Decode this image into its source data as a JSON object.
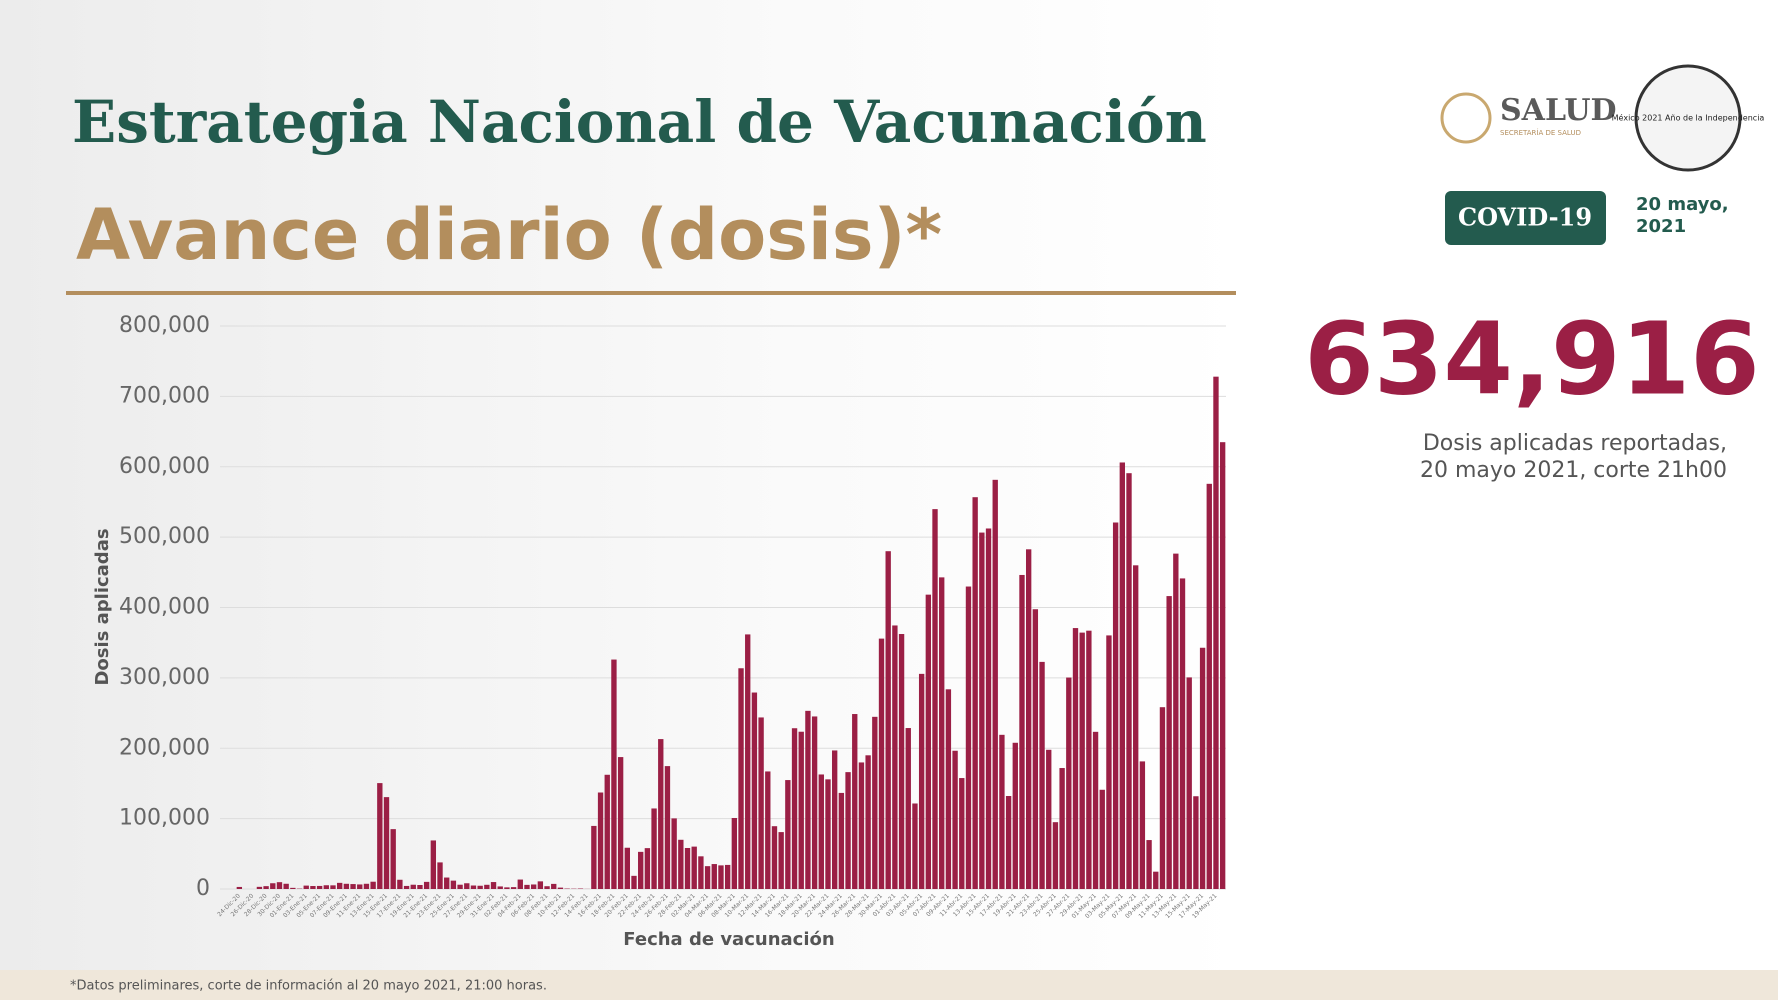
{
  "header": {
    "title": "Estrategia Nacional de Vacunación",
    "subtitle": "Avance diario (dosis)*",
    "logo_text": "SALUD",
    "logo_subtext": "SECRETARÍA DE SALUD",
    "badge": "COVID-19",
    "date": "20 mayo, 2021",
    "emblem_text": "México 2021 Año de la Independencia"
  },
  "summary": {
    "value": {
      "value": 634916,
      "label": "634,916"
    },
    "caption": [
      "Dosis aplicadas reportadas,",
      "20 mayo 2021, corte 21h00"
    ]
  },
  "footnote": "*Datos preliminares, corte de información al 20 mayo  2021, 21:00 horas.",
  "chart_data": {
    "type": "bar",
    "x_label": "Fecha de vacunación",
    "y_label": "Dosis aplicadas",
    "color": "#9b1f45",
    "grid": true,
    "ylim": [
      0,
      800000
    ],
    "yticks": [
      0,
      {
        "value": 100000,
        "label": "100,000"
      },
      {
        "value": 200000,
        "label": "200,000"
      },
      {
        "value": 300000,
        "label": "300,000"
      },
      {
        "value": 400000,
        "label": "400,000"
      },
      {
        "value": 500000,
        "label": "500,000"
      },
      {
        "value": 600000,
        "label": "600,000"
      },
      {
        "value": 700000,
        "label": "700,000"
      },
      {
        "value": 800000,
        "label": "800,000"
      }
    ],
    "categories": [
      "24-Dic-20",
      null,
      "26-Dic-20",
      null,
      "28-Dic-20",
      null,
      "30-Dic-20",
      null,
      "01-Ene-21",
      null,
      "03-Ene-21",
      null,
      "05-Ene-21",
      null,
      "07-Ene-21",
      null,
      "09-Ene-21",
      null,
      "11-Ene-21",
      null,
      "13-Ene-21",
      null,
      "15-Ene-21",
      null,
      "17-Ene-21",
      null,
      "19-Ene-21",
      null,
      "21-Ene-21",
      null,
      "23-Ene-21",
      null,
      "25-Ene-21",
      null,
      "27-Ene-21",
      null,
      "29-Ene-21",
      null,
      "31-Ene-21",
      null,
      "02-Feb-21",
      null,
      "04-Feb-21",
      null,
      "06-Feb-21",
      null,
      "08-Feb-21",
      null,
      "10-Feb-21",
      null,
      "12-Feb-21",
      null,
      "14-Feb-21",
      null,
      "16-Feb-21",
      null,
      "18-Feb-21",
      null,
      "20-Feb-21",
      null,
      "22-Feb-21",
      null,
      "24-Feb-21",
      null,
      "26-Feb-21",
      null,
      "28-Feb-21",
      null,
      "02-Mar-21",
      null,
      "04-Mar-21",
      null,
      "06-Mar-21",
      null,
      "08-Mar-21",
      null,
      "10-Mar-21",
      null,
      "12-Mar-21",
      null,
      "14-Mar-21",
      null,
      "16-Mar-21",
      null,
      "18-Mar-21",
      null,
      "20-Mar-21",
      null,
      "22-Mar-21",
      null,
      "24-Mar-21",
      null,
      "26-Mar-21",
      null,
      "28-Mar-21",
      null,
      "30-Mar-21",
      null,
      "01-Abr-21",
      null,
      "03-Abr-21",
      null,
      "05-Abr-21",
      null,
      "07-Abr-21",
      null,
      "09-Abr-21",
      null,
      "11-Abr-21",
      null,
      "13-Abr-21",
      null,
      "15-Abr-21",
      null,
      "17-Abr-21",
      null,
      "19-Abr-21",
      null,
      "21-Abr-21",
      null,
      "23-Abr-21",
      null,
      "25-Abr-21",
      null,
      "27-Abr-21",
      null,
      "29-Abr-21",
      null,
      "01-May-21",
      null,
      "03-May-21",
      null,
      "05-May-21",
      null,
      "07-May-21",
      null,
      "09-May-21",
      null,
      "11-May-21",
      null,
      "13-May-21",
      null,
      "15-May-21",
      null,
      "17-May-21",
      null,
      "19-May-21",
      null
    ],
    "values": [
      2920,
      8,
      5,
      3064,
      4056,
      8187,
      9703,
      7432,
      1636,
      524,
      4826,
      4243,
      4343,
      5329,
      5191,
      8726,
      7393,
      7013,
      6474,
      7419,
      10351,
      150481,
      130551,
      85070,
      13121,
      4351,
      6077,
      5677,
      10126,
      68992,
      37796,
      16285,
      11887,
      6098,
      8156,
      4976,
      4615,
      5979,
      9878,
      3641,
      2327,
      2665,
      13422,
      5863,
      6427,
      10863,
      3969,
      7261,
      1970,
      611,
      443,
      661,
      154,
      89640,
      137119,
      162314,
      326023,
      187454,
      58623,
      18698,
      52775,
      58071,
      114437,
      213010,
      174628,
      100320,
      69930,
      58274,
      60235,
      46438,
      32466,
      35443,
      33564,
      34221,
      100893,
      313665,
      361760,
      279178,
      243770,
      167039,
      89240,
      80854,
      154794,
      228439,
      223480,
      253144,
      245178,
      162748,
      155811,
      196877,
      136522,
      166070,
      248620,
      179830,
      189971,
      244652,
      355787,
      479999,
      374475,
      362314,
      228723,
      121511,
      305695,
      418250,
      539784,
      442808,
      283742,
      196448,
      157655,
      429796,
      556742,
      506463,
      512274,
      581426,
      219085,
      132139,
      207777,
      446236,
      482680,
      397530,
      322706,
      197804,
      94950,
      171893,
      300464,
      370774,
      364321,
      367053,
      223339,
      141001,
      360332,
      520764,
      606073,
      590854,
      459937,
      181312,
      69547,
      24617,
      258340,
      416224,
      476564,
      441315,
      300669,
      131809,
      342796,
      575746,
      728002,
      634916
    ]
  }
}
